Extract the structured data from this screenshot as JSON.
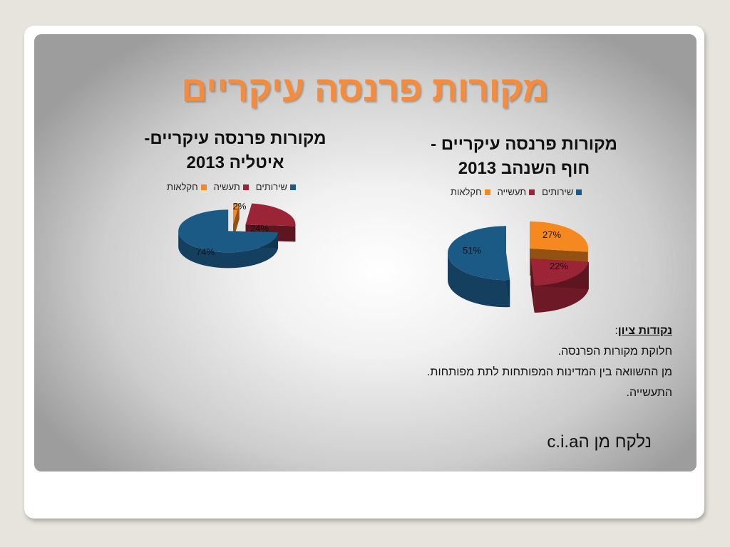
{
  "slide": {
    "title": "מקורות פרנסה עיקריים"
  },
  "legend_labels": {
    "agriculture": "חקלאות",
    "industry_it": "תעשיה",
    "industry_ic": "תעשייה",
    "services": "שירותים"
  },
  "colors": {
    "agriculture": "#f5891f",
    "industry": "#9b2436",
    "services": "#1c5a86",
    "title": "#f58b3c"
  },
  "chart_data": [
    {
      "type": "pie",
      "title_line1": "מקורות פרנסה עיקריים-",
      "title_line2": "איטליה 2013",
      "categories": [
        "חקלאות",
        "תעשיה",
        "שירותים"
      ],
      "values": [
        2,
        24,
        74
      ],
      "labels": [
        "2%",
        "24%",
        "74%"
      ]
    },
    {
      "type": "pie",
      "title_line1": "מקורות פרנסה עיקריים -",
      "title_line2": "חוף השנהב 2013",
      "categories": [
        "חקלאות",
        "תעשייה",
        "שירותים"
      ],
      "values": [
        27,
        22,
        51
      ],
      "labels": [
        "27%",
        "22%",
        "51%"
      ]
    }
  ],
  "notes": {
    "heading": "נקודות ציון",
    "colon": ":",
    "lines": [
      "חלוקת מקורות הפרנסה.",
      "מן ההשוואה בין המדינות המפותחות לתת מפותחות.",
      "התעשייה."
    ]
  },
  "source": "נלקח מן הc.i.a"
}
